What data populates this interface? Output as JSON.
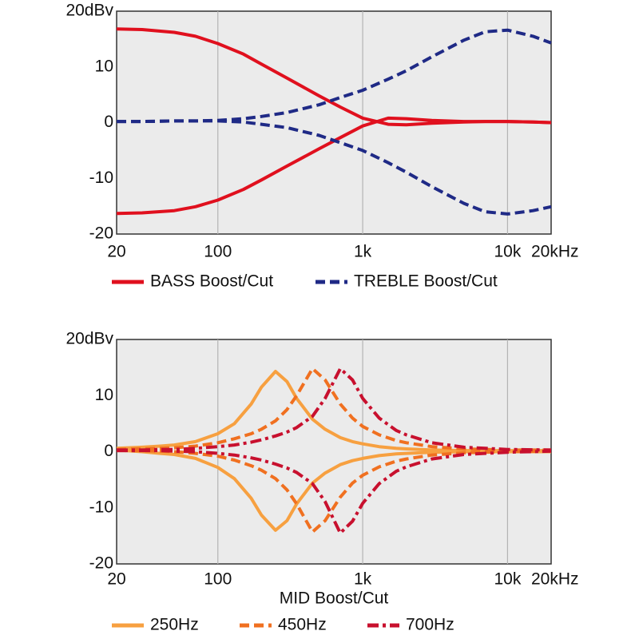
{
  "chart_data": [
    {
      "type": "line",
      "xscale": "log",
      "grid": "x",
      "xlim": [
        20,
        20000
      ],
      "xticks": [
        20,
        100,
        {
          "value": 1000,
          "label": "1k"
        },
        {
          "value": 10000,
          "label": "10k"
        },
        {
          "value": 20000,
          "label": "20kHz"
        }
      ],
      "ylim": [
        -20,
        20
      ],
      "yticks": [
        -20,
        -10,
        0,
        10,
        {
          "value": 20,
          "label": "20dBv"
        }
      ],
      "x": [
        20,
        30,
        50,
        70,
        100,
        150,
        200,
        300,
        500,
        700,
        1000,
        1500,
        2000,
        3000,
        5000,
        7000,
        10000,
        15000,
        20000
      ],
      "series": [
        {
          "name": "BASS Boost/Cut",
          "color": "#e0101e",
          "dash": "solid",
          "curves": [
            [
              16.8,
              16.7,
              16.2,
              15.5,
              14.2,
              12.3,
              10.5,
              8,
              4.8,
              2.8,
              0.8,
              -0.3,
              -0.4,
              -0.1,
              0.1,
              0.2,
              0.2,
              0.1,
              0
            ],
            [
              -16.3,
              -16.2,
              -15.8,
              -15.1,
              -13.9,
              -12,
              -10.3,
              -7.8,
              -4.7,
              -2.7,
              -0.6,
              0.8,
              0.7,
              0.4,
              0.2,
              0.2,
              0.2,
              0.1,
              0
            ]
          ]
        },
        {
          "name": "TREBLE Boost/Cut",
          "color": "#1f2a86",
          "dash": "dash",
          "curves": [
            [
              0.2,
              0.2,
              0.3,
              0.3,
              0.4,
              0.7,
              1.1,
              1.8,
              3.2,
              4.5,
              5.8,
              7.8,
              9.3,
              11.8,
              14.8,
              16.3,
              16.6,
              15.5,
              14.3
            ],
            [
              0.2,
              0.2,
              0.3,
              0.3,
              0.3,
              0.1,
              -0.3,
              -0.9,
              -2.3,
              -3.6,
              -5,
              -7.2,
              -8.9,
              -11.5,
              -14.5,
              -16,
              -16.4,
              -15.8,
              -15.1
            ]
          ]
        }
      ]
    },
    {
      "type": "line",
      "xscale": "log",
      "grid": "x",
      "xlabel": "MID Boost/Cut",
      "xlim": [
        20,
        20000
      ],
      "xticks": [
        20,
        100,
        {
          "value": 1000,
          "label": "1k"
        },
        {
          "value": 10000,
          "label": "10k"
        },
        {
          "value": 20000,
          "label": "20kHz"
        }
      ],
      "ylim": [
        -20,
        20
      ],
      "yticks": [
        -20,
        -10,
        0,
        10,
        {
          "value": 20,
          "label": "20dBv"
        }
      ],
      "x": [
        20,
        30,
        40,
        50,
        70,
        100,
        130,
        170,
        200,
        250,
        300,
        350,
        450,
        550,
        700,
        850,
        1000,
        1300,
        1700,
        2000,
        3000,
        5000,
        10000,
        20000
      ],
      "series": [
        {
          "name": "250Hz",
          "color": "#f7a040",
          "dash": "solid",
          "curves": [
            [
              0.6,
              0.8,
              1,
              1.2,
              1.8,
              3.2,
              5,
              8.5,
              11.5,
              14.3,
              12.5,
              9.5,
              5.8,
              4,
              2.5,
              1.8,
              1.4,
              0.9,
              0.6,
              0.5,
              0.3,
              0.2,
              0.2,
              0.2
            ],
            [
              0.3,
              0,
              -0.3,
              -0.5,
              -1.2,
              -2.8,
              -4.8,
              -8.3,
              -11.3,
              -14,
              -12.3,
              -9.3,
              -5.6,
              -3.8,
              -2.3,
              -1.6,
              -1.2,
              -0.7,
              -0.4,
              -0.3,
              -0.1,
              0,
              0,
              0
            ]
          ]
        },
        {
          "name": "450Hz",
          "color": "#f07020",
          "dash": "dash",
          "curves": [
            [
              0.4,
              0.5,
              0.6,
              0.7,
              1,
              1.6,
              2.3,
              3.2,
              4,
              5.5,
              7.5,
              10,
              14.8,
              12.8,
              8.5,
              6,
              4.5,
              3,
              2,
              1.6,
              0.9,
              0.5,
              0.3,
              0.3
            ],
            [
              0.2,
              0.2,
              0.1,
              0,
              -0.3,
              -0.8,
              -1.5,
              -2.5,
              -3.3,
              -4.8,
              -6.8,
              -9.3,
              -14.3,
              -12.3,
              -8.1,
              -5.6,
              -4.2,
              -2.7,
              -1.7,
              -1.3,
              -0.6,
              -0.2,
              0,
              0.1
            ]
          ]
        },
        {
          "name": "700Hz",
          "color": "#c8102e",
          "dash": "dashdot",
          "curves": [
            [
              0.3,
              0.3,
              0.4,
              0.4,
              0.6,
              0.9,
              1.2,
              1.7,
              2.1,
              2.8,
              3.5,
              4.3,
              6.3,
              9.5,
              14.8,
              12.8,
              9.5,
              6,
              3.8,
              3,
              1.6,
              0.8,
              0.4,
              0.3
            ],
            [
              0.2,
              0.2,
              0.2,
              0.1,
              0,
              -0.3,
              -0.6,
              -1.1,
              -1.5,
              -2.2,
              -2.9,
              -3.7,
              -5.7,
              -8.9,
              -14.5,
              -12.4,
              -9.2,
              -5.7,
              -3.5,
              -2.7,
              -1.3,
              -0.5,
              -0.1,
              0.1
            ]
          ]
        }
      ]
    }
  ]
}
